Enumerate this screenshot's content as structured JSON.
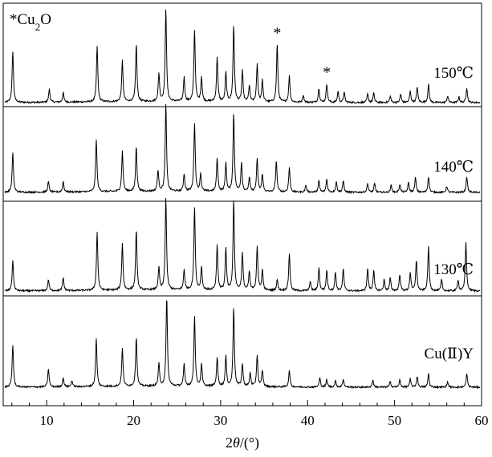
{
  "chart_data": {
    "type": "line",
    "xlabel": "2θ/(°)",
    "xlim": [
      5,
      60
    ],
    "x_ticks": [
      "10",
      "20",
      "30",
      "40",
      "50",
      "60"
    ],
    "legend": "*Cu₂O",
    "marker_symbol": "*",
    "cu2o_markers_2theta": [
      36.5,
      42.2
    ],
    "series": [
      {
        "name": "150℃",
        "peaks": [
          [
            6.1,
            0.55
          ],
          [
            10.3,
            0.14
          ],
          [
            11.9,
            0.1
          ],
          [
            15.8,
            0.6
          ],
          [
            18.7,
            0.44
          ],
          [
            20.3,
            0.62
          ],
          [
            22.9,
            0.3
          ],
          [
            23.7,
            1.0
          ],
          [
            25.8,
            0.26
          ],
          [
            27.0,
            0.77
          ],
          [
            27.8,
            0.26
          ],
          [
            29.6,
            0.48
          ],
          [
            30.6,
            0.31
          ],
          [
            31.5,
            0.82
          ],
          [
            32.5,
            0.33
          ],
          [
            33.3,
            0.17
          ],
          [
            34.2,
            0.4
          ],
          [
            34.8,
            0.23
          ],
          [
            36.5,
            0.62
          ],
          [
            37.9,
            0.28
          ],
          [
            39.5,
            0.08
          ],
          [
            41.3,
            0.15
          ],
          [
            42.2,
            0.2
          ],
          [
            43.5,
            0.12
          ],
          [
            44.2,
            0.11
          ],
          [
            46.9,
            0.09
          ],
          [
            47.6,
            0.1
          ],
          [
            49.5,
            0.07
          ],
          [
            50.7,
            0.09
          ],
          [
            51.8,
            0.12
          ],
          [
            52.6,
            0.17
          ],
          [
            53.9,
            0.2
          ],
          [
            56.1,
            0.07
          ],
          [
            57.4,
            0.06
          ],
          [
            58.3,
            0.16
          ]
        ]
      },
      {
        "name": "140℃",
        "peaks": [
          [
            6.1,
            0.45
          ],
          [
            10.2,
            0.12
          ],
          [
            11.9,
            0.12
          ],
          [
            15.7,
            0.6
          ],
          [
            18.7,
            0.46
          ],
          [
            20.3,
            0.52
          ],
          [
            22.8,
            0.24
          ],
          [
            23.7,
            1.0
          ],
          [
            25.8,
            0.2
          ],
          [
            27.0,
            0.78
          ],
          [
            27.7,
            0.2
          ],
          [
            29.6,
            0.38
          ],
          [
            30.6,
            0.32
          ],
          [
            31.5,
            0.9
          ],
          [
            32.4,
            0.33
          ],
          [
            33.3,
            0.16
          ],
          [
            34.2,
            0.37
          ],
          [
            34.8,
            0.2
          ],
          [
            36.4,
            0.36
          ],
          [
            37.9,
            0.28
          ],
          [
            39.8,
            0.08
          ],
          [
            41.3,
            0.13
          ],
          [
            42.2,
            0.15
          ],
          [
            43.3,
            0.12
          ],
          [
            44.1,
            0.13
          ],
          [
            46.9,
            0.1
          ],
          [
            47.7,
            0.1
          ],
          [
            49.6,
            0.08
          ],
          [
            50.6,
            0.09
          ],
          [
            51.6,
            0.11
          ],
          [
            52.4,
            0.17
          ],
          [
            53.9,
            0.18
          ],
          [
            56.0,
            0.07
          ],
          [
            58.3,
            0.18
          ]
        ]
      },
      {
        "name": "130℃",
        "peaks": [
          [
            6.1,
            0.33
          ],
          [
            10.2,
            0.12
          ],
          [
            11.9,
            0.14
          ],
          [
            15.8,
            0.63
          ],
          [
            18.7,
            0.5
          ],
          [
            20.3,
            0.66
          ],
          [
            22.9,
            0.24
          ],
          [
            23.7,
            1.0
          ],
          [
            25.8,
            0.22
          ],
          [
            27.0,
            0.9
          ],
          [
            27.8,
            0.25
          ],
          [
            29.6,
            0.48
          ],
          [
            30.6,
            0.45
          ],
          [
            31.5,
            0.97
          ],
          [
            32.5,
            0.4
          ],
          [
            33.3,
            0.2
          ],
          [
            34.2,
            0.48
          ],
          [
            34.8,
            0.22
          ],
          [
            36.5,
            0.12
          ],
          [
            37.9,
            0.4
          ],
          [
            40.3,
            0.1
          ],
          [
            41.3,
            0.25
          ],
          [
            42.2,
            0.22
          ],
          [
            43.2,
            0.2
          ],
          [
            44.1,
            0.24
          ],
          [
            46.9,
            0.24
          ],
          [
            47.6,
            0.22
          ],
          [
            48.8,
            0.12
          ],
          [
            49.5,
            0.14
          ],
          [
            50.6,
            0.18
          ],
          [
            51.8,
            0.2
          ],
          [
            52.5,
            0.33
          ],
          [
            53.9,
            0.48
          ],
          [
            55.4,
            0.12
          ],
          [
            57.3,
            0.12
          ],
          [
            58.2,
            0.52
          ]
        ]
      },
      {
        "name": "Cu(Ⅱ)Y",
        "peaks": [
          [
            6.1,
            0.47
          ],
          [
            10.2,
            0.2
          ],
          [
            11.9,
            0.1
          ],
          [
            12.9,
            0.07
          ],
          [
            15.7,
            0.53
          ],
          [
            18.7,
            0.42
          ],
          [
            20.3,
            0.55
          ],
          [
            22.9,
            0.25
          ],
          [
            23.8,
            1.0
          ],
          [
            25.8,
            0.24
          ],
          [
            27.0,
            0.78
          ],
          [
            27.8,
            0.24
          ],
          [
            29.6,
            0.32
          ],
          [
            30.6,
            0.33
          ],
          [
            31.5,
            0.88
          ],
          [
            32.5,
            0.25
          ],
          [
            33.4,
            0.15
          ],
          [
            34.2,
            0.35
          ],
          [
            34.8,
            0.18
          ],
          [
            37.9,
            0.18
          ],
          [
            41.4,
            0.1
          ],
          [
            42.2,
            0.08
          ],
          [
            43.2,
            0.07
          ],
          [
            44.1,
            0.09
          ],
          [
            47.5,
            0.08
          ],
          [
            49.5,
            0.06
          ],
          [
            50.6,
            0.08
          ],
          [
            51.8,
            0.09
          ],
          [
            52.6,
            0.12
          ],
          [
            53.9,
            0.15
          ],
          [
            56.1,
            0.06
          ],
          [
            58.3,
            0.15
          ]
        ]
      }
    ]
  }
}
